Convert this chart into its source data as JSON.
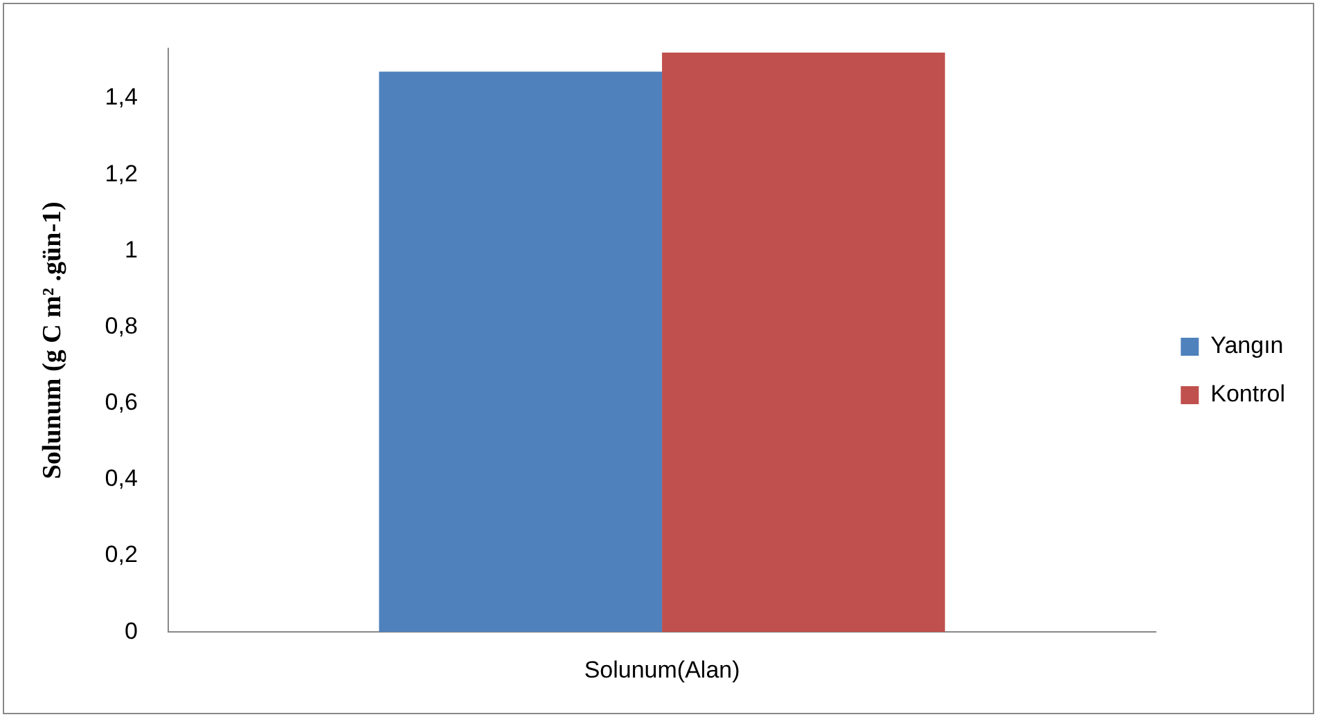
{
  "chart_data": {
    "type": "bar",
    "ylabel": "Solunum (g C m² .gün-1)",
    "categories": [
      "Solunum(Alan)"
    ],
    "series": [
      {
        "name": "Yangın",
        "color": "#4f81bd",
        "values": [
          1.47
        ]
      },
      {
        "name": "Kontrol",
        "color": "#c0504d",
        "values": [
          1.52
        ]
      }
    ],
    "ylim": [
      0,
      1.53
    ],
    "yticks": [
      0,
      {
        "value": 0.2,
        "label": "0,2"
      },
      {
        "value": 0.4,
        "label": "0,4"
      },
      {
        "value": 0.6,
        "label": "0,6"
      },
      {
        "value": 0.8,
        "label": "0,8"
      },
      1,
      {
        "value": 1.2,
        "label": "1,2"
      },
      {
        "value": 1.4,
        "label": "1,4"
      }
    ],
    "grid": false,
    "legend": "right"
  }
}
